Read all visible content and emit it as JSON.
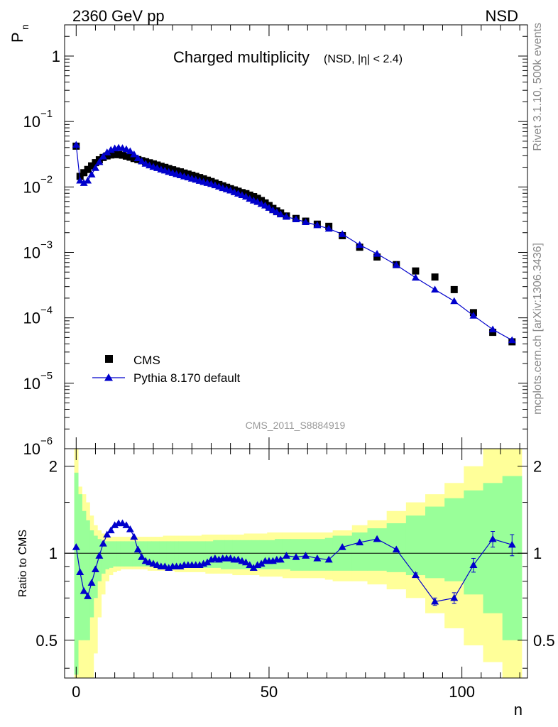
{
  "header": {
    "left": "2360 GeV pp",
    "right": "NSD"
  },
  "side": {
    "top": "Rivet 3.1.10,  500k events",
    "bottom": "mcplots.cern.ch [arXiv:1306.3436]"
  },
  "chart_data": [
    {
      "type": "scatter",
      "title": "Charged multiplicity",
      "title_suffix": "(NSD, |η| < 2.4)",
      "ylabel": "P",
      "ylabel_sub": "n",
      "yscale": "log",
      "ylim": [
        1e-06,
        3
      ],
      "xlim": [
        -3,
        117
      ],
      "ytick_labels": [
        "1",
        "10",
        "10",
        "10",
        "10",
        "10",
        "10"
      ],
      "ytick_exponents": [
        "",
        "−1",
        "−2",
        "−3",
        "−4",
        "−5",
        "−6"
      ],
      "watermark": "CMS_2011_S8884919",
      "legend": {
        "position": "lower-left",
        "entries": [
          "CMS",
          "Pythia 8.170 default"
        ]
      },
      "series": [
        {
          "name": "CMS",
          "marker": "square",
          "color": "#000000",
          "x": [
            0,
            1,
            2,
            3,
            4,
            5,
            6,
            7,
            8,
            9,
            10,
            11,
            12,
            13,
            14,
            15,
            16,
            17,
            18,
            19,
            20,
            21,
            22,
            23,
            24,
            25,
            26,
            27,
            28,
            29,
            30,
            31,
            32,
            33,
            34,
            35,
            36,
            37,
            38,
            39,
            40,
            41,
            42,
            43,
            44,
            45,
            46,
            47,
            48,
            49,
            50,
            51,
            52,
            53,
            54.5,
            57,
            59.5,
            62.5,
            65.5,
            69,
            73.5,
            78,
            83,
            88,
            93,
            98,
            103,
            108,
            113
          ],
          "y": [
            0.042,
            0.0145,
            0.0165,
            0.0185,
            0.021,
            0.0235,
            0.026,
            0.0282,
            0.0298,
            0.0308,
            0.0312,
            0.0312,
            0.0306,
            0.0296,
            0.0285,
            0.0272,
            0.0262,
            0.0252,
            0.0243,
            0.0234,
            0.0225,
            0.0216,
            0.0207,
            0.0199,
            0.0191,
            0.0183,
            0.0176,
            0.017,
            0.0163,
            0.0157,
            0.0151,
            0.0145,
            0.0139,
            0.0133,
            0.0127,
            0.0121,
            0.0115,
            0.0109,
            0.0104,
            0.0099,
            0.0094,
            0.009,
            0.0086,
            0.0082,
            0.0079,
            0.0075,
            0.0071,
            0.0067,
            0.0062,
            0.0057,
            0.0052,
            0.0047,
            0.0043,
            0.004,
            0.0036,
            0.0033,
            0.003,
            0.0027,
            0.0025,
            0.0018,
            0.0012,
            0.00085,
            0.00065,
            0.00052,
            0.00042,
            0.00027,
            0.00012,
            6e-05,
            4.3e-05
          ]
        },
        {
          "name": "Pythia 8.170 default",
          "marker": "triangle",
          "color": "#0000cc",
          "x": [
            0,
            1,
            2,
            3,
            4,
            5,
            6,
            7,
            8,
            9,
            10,
            11,
            12,
            13,
            14,
            15,
            16,
            17,
            18,
            19,
            20,
            21,
            22,
            23,
            24,
            25,
            26,
            27,
            28,
            29,
            30,
            31,
            32,
            33,
            34,
            35,
            36,
            37,
            38,
            39,
            40,
            41,
            42,
            43,
            44,
            45,
            46,
            47,
            48,
            49,
            50,
            51,
            52,
            53,
            54.5,
            57,
            59.5,
            62.5,
            65.5,
            69,
            73.5,
            78,
            83,
            88,
            93,
            98,
            103,
            108,
            113
          ],
          "y": [
            0.044,
            0.0125,
            0.0115,
            0.0125,
            0.0155,
            0.0195,
            0.024,
            0.0292,
            0.0338,
            0.0368,
            0.0389,
            0.0397,
            0.0392,
            0.0376,
            0.0351,
            0.0315,
            0.0275,
            0.0246,
            0.0226,
            0.0213,
            0.0203,
            0.0194,
            0.0185,
            0.0178,
            0.017,
            0.0163,
            0.0157,
            0.0151,
            0.0145,
            0.014,
            0.0134,
            0.0129,
            0.0124,
            0.0119,
            0.0115,
            0.0111,
            0.0106,
            0.0101,
            0.0096,
            0.0092,
            0.0088,
            0.0083,
            0.0079,
            0.0075,
            0.0071,
            0.0066,
            0.0062,
            0.0059,
            0.0055,
            0.0052,
            0.0048,
            0.0044,
            0.0041,
            0.0038,
            0.0035,
            0.0032,
            0.0029,
            0.0026,
            0.0023,
            0.0019,
            0.0013,
            0.00095,
            0.00064,
            0.00041,
            0.00027,
            0.00018,
            0.000108,
            6.65e-05,
            4.55e-05
          ]
        }
      ]
    },
    {
      "type": "line",
      "ylabel": "Ratio to CMS",
      "xlabel": "n",
      "yscale": "log",
      "ylim": [
        0.37,
        2.3
      ],
      "xlim": [
        -3,
        117
      ],
      "reference_line": 1,
      "xtick_labels": [
        "0",
        "50",
        "100"
      ],
      "ytick_labels": [
        "0.5",
        "1",
        "2"
      ],
      "bins": {
        "edges": [
          -0.5,
          0.5,
          1.5,
          2.5,
          3.5,
          4.5,
          5.5,
          6.5,
          7.5,
          8.5,
          9.5,
          10.5,
          11.5,
          12.5,
          13.5,
          14.5,
          15.5,
          16.5,
          17.5,
          18.5,
          19.5,
          20.5,
          21.5,
          22.5,
          23.5,
          24.5,
          25.5,
          26.5,
          27.5,
          28.5,
          29.5,
          30.5,
          31.5,
          32.5,
          33.5,
          34.5,
          35.5,
          36.5,
          37.5,
          38.5,
          39.5,
          40.5,
          41.5,
          42.5,
          43.5,
          44.5,
          45.5,
          46.5,
          47.5,
          48.5,
          49.5,
          50.5,
          51.5,
          52.5,
          53.5,
          55.5,
          58.5,
          60.5,
          64.5,
          66.5,
          71.5,
          75.5,
          80.5,
          85.5,
          90.5,
          95.5,
          100.5,
          105.5,
          110.5,
          115.5
        ],
        "green_low": [
          0.38,
          0.5,
          0.5,
          0.5,
          0.6,
          0.7,
          0.8,
          0.85,
          0.88,
          0.89,
          0.9,
          0.9,
          0.9,
          0.9,
          0.9,
          0.9,
          0.9,
          0.9,
          0.9,
          0.9,
          0.9,
          0.9,
          0.9,
          0.9,
          0.9,
          0.9,
          0.9,
          0.9,
          0.89,
          0.89,
          0.89,
          0.89,
          0.89,
          0.89,
          0.89,
          0.89,
          0.89,
          0.89,
          0.88,
          0.88,
          0.88,
          0.88,
          0.88,
          0.88,
          0.88,
          0.88,
          0.88,
          0.88,
          0.88,
          0.88,
          0.88,
          0.88,
          0.88,
          0.88,
          0.88,
          0.87,
          0.87,
          0.87,
          0.87,
          0.87,
          0.87,
          0.87,
          0.86,
          0.84,
          0.82,
          0.8,
          0.72,
          0.62,
          0.5
        ],
        "green_high": [
          1.9,
          1.6,
          1.4,
          1.3,
          1.2,
          1.15,
          1.12,
          1.1,
          1.1,
          1.1,
          1.1,
          1.1,
          1.1,
          1.1,
          1.1,
          1.1,
          1.1,
          1.1,
          1.1,
          1.1,
          1.1,
          1.1,
          1.1,
          1.1,
          1.1,
          1.1,
          1.1,
          1.1,
          1.1,
          1.1,
          1.1,
          1.1,
          1.1,
          1.1,
          1.1,
          1.1,
          1.11,
          1.11,
          1.11,
          1.11,
          1.11,
          1.11,
          1.11,
          1.11,
          1.11,
          1.11,
          1.11,
          1.11,
          1.11,
          1.11,
          1.11,
          1.11,
          1.12,
          1.12,
          1.12,
          1.12,
          1.12,
          1.12,
          1.13,
          1.15,
          1.18,
          1.22,
          1.27,
          1.35,
          1.45,
          1.55,
          1.65,
          1.75,
          1.85
        ],
        "yellow_low": [
          0.37,
          0.37,
          0.37,
          0.37,
          0.37,
          0.45,
          0.6,
          0.72,
          0.8,
          0.84,
          0.86,
          0.87,
          0.88,
          0.88,
          0.88,
          0.88,
          0.88,
          0.88,
          0.88,
          0.87,
          0.87,
          0.87,
          0.87,
          0.87,
          0.87,
          0.87,
          0.86,
          0.86,
          0.86,
          0.86,
          0.86,
          0.86,
          0.86,
          0.86,
          0.85,
          0.85,
          0.85,
          0.85,
          0.85,
          0.85,
          0.85,
          0.84,
          0.84,
          0.84,
          0.84,
          0.84,
          0.84,
          0.84,
          0.83,
          0.83,
          0.83,
          0.83,
          0.83,
          0.83,
          0.82,
          0.82,
          0.82,
          0.82,
          0.81,
          0.8,
          0.8,
          0.78,
          0.75,
          0.7,
          0.62,
          0.55,
          0.48,
          0.42,
          0.37
        ],
        "yellow_high": [
          2.3,
          1.7,
          1.6,
          1.5,
          1.35,
          1.25,
          1.2,
          1.17,
          1.15,
          1.14,
          1.14,
          1.14,
          1.14,
          1.14,
          1.14,
          1.14,
          1.14,
          1.14,
          1.14,
          1.14,
          1.14,
          1.14,
          1.14,
          1.15,
          1.15,
          1.15,
          1.15,
          1.15,
          1.15,
          1.15,
          1.15,
          1.15,
          1.15,
          1.16,
          1.16,
          1.16,
          1.16,
          1.16,
          1.16,
          1.16,
          1.16,
          1.16,
          1.16,
          1.16,
          1.17,
          1.17,
          1.17,
          1.17,
          1.17,
          1.17,
          1.18,
          1.18,
          1.18,
          1.18,
          1.18,
          1.18,
          1.18,
          1.18,
          1.18,
          1.2,
          1.25,
          1.3,
          1.4,
          1.5,
          1.6,
          1.75,
          2.0,
          2.3,
          2.3
        ]
      },
      "series": [
        {
          "name": "Pythia 8.170 default",
          "marker": "triangle",
          "color": "#0000cc",
          "x": [
            0,
            1,
            2,
            3,
            4,
            5,
            6,
            7,
            8,
            9,
            10,
            11,
            12,
            13,
            14,
            15,
            16,
            17,
            18,
            19,
            20,
            21,
            22,
            23,
            24,
            25,
            26,
            27,
            28,
            29,
            30,
            31,
            32,
            33,
            34,
            35,
            36,
            37,
            38,
            39,
            40,
            41,
            42,
            43,
            44,
            45,
            46,
            47,
            48,
            49,
            50,
            51,
            52,
            53,
            54.5,
            57,
            59.5,
            62.5,
            65.5,
            69,
            73.5,
            78,
            83,
            88,
            93,
            98,
            103,
            108,
            113
          ],
          "y": [
            1.05,
            0.86,
            0.74,
            0.71,
            0.79,
            0.88,
            0.98,
            1.08,
            1.16,
            1.2,
            1.25,
            1.27,
            1.27,
            1.25,
            1.21,
            1.14,
            1.03,
            0.97,
            0.94,
            0.93,
            0.92,
            0.91,
            0.9,
            0.9,
            0.89,
            0.9,
            0.9,
            0.9,
            0.91,
            0.91,
            0.91,
            0.91,
            0.91,
            0.92,
            0.93,
            0.95,
            0.96,
            0.95,
            0.96,
            0.96,
            0.96,
            0.95,
            0.95,
            0.94,
            0.93,
            0.91,
            0.89,
            0.91,
            0.92,
            0.94,
            0.94,
            0.94,
            0.95,
            0.95,
            0.98,
            0.97,
            0.98,
            0.96,
            0.95,
            1.05,
            1.09,
            1.12,
            1.03,
            0.84,
            0.68,
            0.7,
            0.91,
            1.12,
            1.07
          ],
          "err": [
            0,
            0,
            0,
            0,
            0,
            0,
            0,
            0,
            0,
            0,
            0,
            0,
            0,
            0,
            0,
            0,
            0,
            0,
            0,
            0,
            0,
            0,
            0,
            0,
            0,
            0,
            0,
            0,
            0,
            0,
            0,
            0,
            0,
            0,
            0,
            0,
            0,
            0,
            0,
            0,
            0,
            0,
            0,
            0,
            0,
            0,
            0,
            0,
            0,
            0,
            0,
            0,
            0,
            0,
            0,
            0,
            0,
            0,
            0,
            0,
            0,
            0,
            0.005,
            0.015,
            0.02,
            0.03,
            0.05,
            0.07,
            0.09
          ]
        }
      ]
    }
  ]
}
